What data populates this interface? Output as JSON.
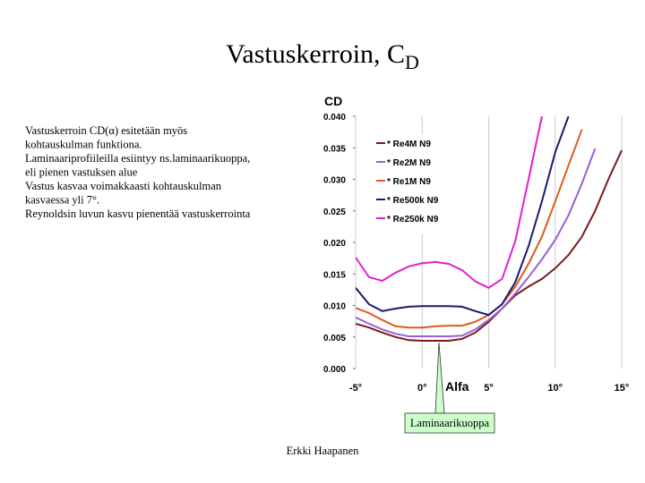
{
  "slide": {
    "title": "Vastuskerroin, C",
    "title_sub": "D",
    "body": [
      "Vastuskerroin CD(α) esitetään myös",
      "kohtauskulman funktiona.",
      "Laminaariprofiileilla esiintyy ns.laminaarikuoppa,",
      "eli pienen vastuksen alue",
      "Vastus kasvaa voimakkaasti kohtauskulman",
      "kasvaessa yli 7°.",
      "Reynoldsin luvun kasvu pienentää vastuskerrointa"
    ],
    "callout": "Laminaarikuoppa",
    "footer": "Erkki Haapanen"
  },
  "chart_data": {
    "type": "line",
    "ylabel": "CD",
    "xlabel": "Alfa",
    "x": [
      -5,
      -4,
      -3,
      -2,
      -1,
      0,
      1,
      2,
      3,
      4,
      5,
      6,
      7,
      8,
      9,
      10,
      11,
      12,
      13,
      14,
      15
    ],
    "xlim": [
      -5,
      15
    ],
    "xticks": [
      {
        "value": -5,
        "label": "-5°"
      },
      {
        "value": 0,
        "label": "0°"
      },
      {
        "value": 5,
        "label": "5°"
      },
      {
        "value": 10,
        "label": "10°"
      },
      {
        "value": 15,
        "label": "15°"
      }
    ],
    "ylim": [
      0,
      0.04
    ],
    "yticks": [
      {
        "value": 0,
        "label": "0.000"
      },
      {
        "value": 0.005,
        "label": "0.005"
      },
      {
        "value": 0.01,
        "label": "0.010"
      },
      {
        "value": 0.015,
        "label": "0.015"
      },
      {
        "value": 0.02,
        "label": "0.020"
      },
      {
        "value": 0.025,
        "label": "0.025"
      },
      {
        "value": 0.03,
        "label": "0.030"
      },
      {
        "value": 0.035,
        "label": "0.035"
      },
      {
        "value": 0.04,
        "label": "0.040"
      }
    ],
    "grid": true,
    "series": [
      {
        "name": "* Re4M N9",
        "color": "#7b1a1a",
        "values": [
          0.0071,
          0.0065,
          0.0057,
          0.005,
          0.0045,
          0.0044,
          0.0044,
          0.0044,
          0.0047,
          0.0057,
          0.0074,
          0.0095,
          0.0116,
          0.013,
          0.0142,
          0.0159,
          0.018,
          0.0209,
          0.025,
          0.03,
          0.0346
        ]
      },
      {
        "name": "* Re2M N9",
        "color": "#9a5fd6",
        "values": [
          0.0081,
          0.0071,
          0.0062,
          0.0055,
          0.0051,
          0.0051,
          0.0051,
          0.0051,
          0.0052,
          0.0062,
          0.0077,
          0.0095,
          0.0119,
          0.0145,
          0.0173,
          0.0204,
          0.0243,
          0.0293,
          0.0349,
          null,
          null
        ]
      },
      {
        "name": "* Re1M N9",
        "color": "#e05a1a",
        "values": [
          0.0096,
          0.0088,
          0.0077,
          0.0067,
          0.0065,
          0.0065,
          0.0067,
          0.0068,
          0.0068,
          0.0074,
          0.0085,
          0.0102,
          0.013,
          0.0166,
          0.0209,
          0.0265,
          0.0322,
          0.0379,
          null,
          null,
          null
        ]
      },
      {
        "name": "* Re500k N9",
        "color": "#1a1a6e",
        "values": [
          0.0128,
          0.0102,
          0.0091,
          0.0095,
          0.0098,
          0.0099,
          0.0099,
          0.0099,
          0.0098,
          0.0091,
          0.0085,
          0.0102,
          0.0137,
          0.0194,
          0.0265,
          0.0343,
          0.04,
          null,
          null,
          null,
          null
        ]
      },
      {
        "name": "* Re250k N9",
        "color": "#e020d0",
        "values": [
          0.0176,
          0.0145,
          0.0139,
          0.0152,
          0.0162,
          0.0167,
          0.0169,
          0.0166,
          0.0156,
          0.0138,
          0.0128,
          0.0142,
          0.0202,
          0.03,
          0.04,
          null,
          null,
          null,
          null,
          null,
          null
        ]
      }
    ]
  }
}
